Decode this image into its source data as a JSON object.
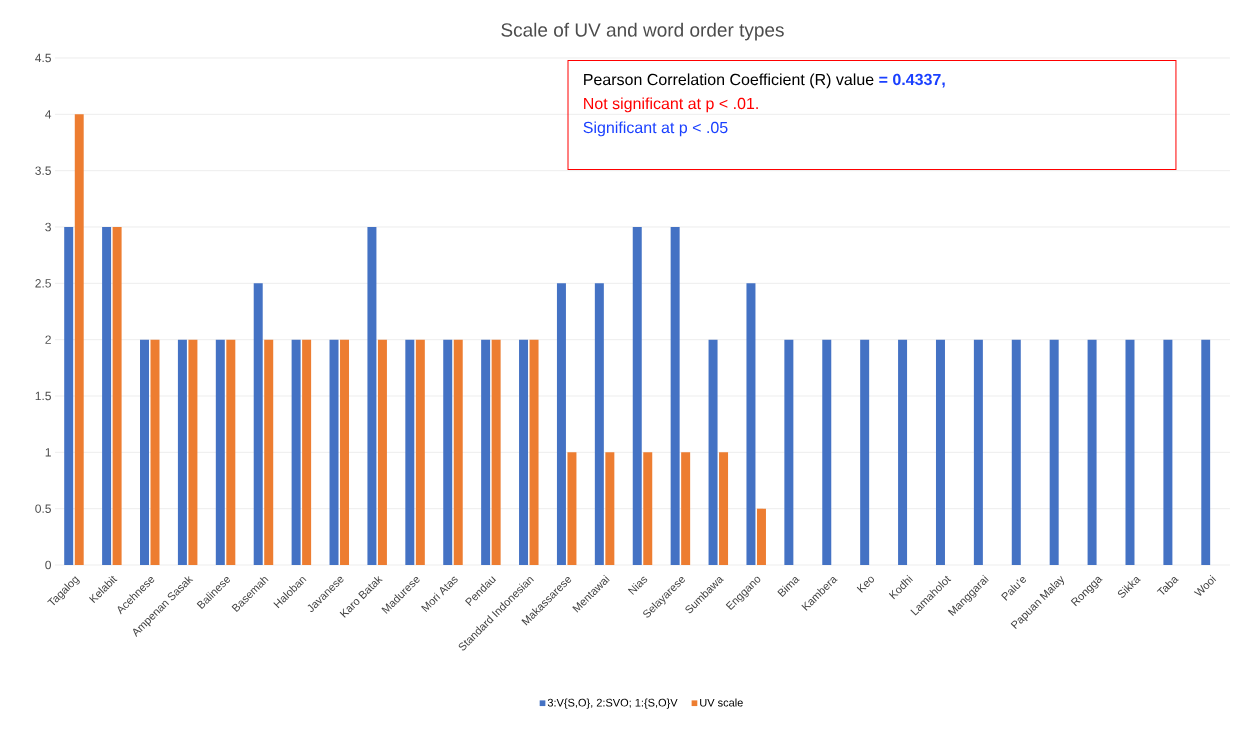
{
  "chart_data": {
    "type": "bar",
    "title": "Scale of UV and word order types",
    "categories": [
      "Tagalog",
      "Kelabit",
      "Acehnese",
      "Ampenan Sasak",
      "Balinese",
      "Basemah",
      "Haloban",
      "Javanese",
      "Karo Batak",
      "Madurese",
      "Mori Atas",
      "Pendau",
      "Standard Indonesian",
      "Makassarese",
      "Mentawai",
      "Nias",
      "Selayarese",
      "Sumbawa",
      "Enggano",
      "Bima",
      "Kambera",
      "Keo",
      "Kodhi",
      "Lamaholot",
      "Manggarai",
      "Palu'e",
      "Papuan Malay",
      "Rongga",
      "Sikka",
      "Taba",
      "Wooi"
    ],
    "series": [
      {
        "name": "3:V{S,O}, 2:SVO; 1:{S,O}V",
        "color": "#4472c4",
        "values": [
          3,
          3,
          2,
          2,
          2,
          2.5,
          2,
          2,
          3,
          2,
          2,
          2,
          2,
          2.5,
          2.5,
          3,
          3,
          2,
          2.5,
          2,
          2,
          2,
          2,
          2,
          2,
          2,
          2,
          2,
          2,
          2,
          2
        ]
      },
      {
        "name": "UV scale",
        "color": "#ed7d31",
        "values": [
          4,
          3,
          2,
          2,
          2,
          2,
          2,
          2,
          2,
          2,
          2,
          2,
          2,
          1,
          1,
          1,
          1,
          1,
          0.5,
          null,
          null,
          null,
          null,
          null,
          null,
          null,
          null,
          null,
          null,
          null,
          null
        ]
      }
    ],
    "ylim": [
      0,
      4.5
    ],
    "yticks": [
      0,
      0.5,
      1,
      1.5,
      2,
      2.5,
      3,
      3.5,
      4,
      4.5
    ],
    "grid": "y",
    "legend": "bottom",
    "annotations": [
      "Pearson Correlation Coefficient (R) value",
      "= 0.4337,",
      "Not significant at p < .01.",
      "Significant at p < .05"
    ]
  }
}
